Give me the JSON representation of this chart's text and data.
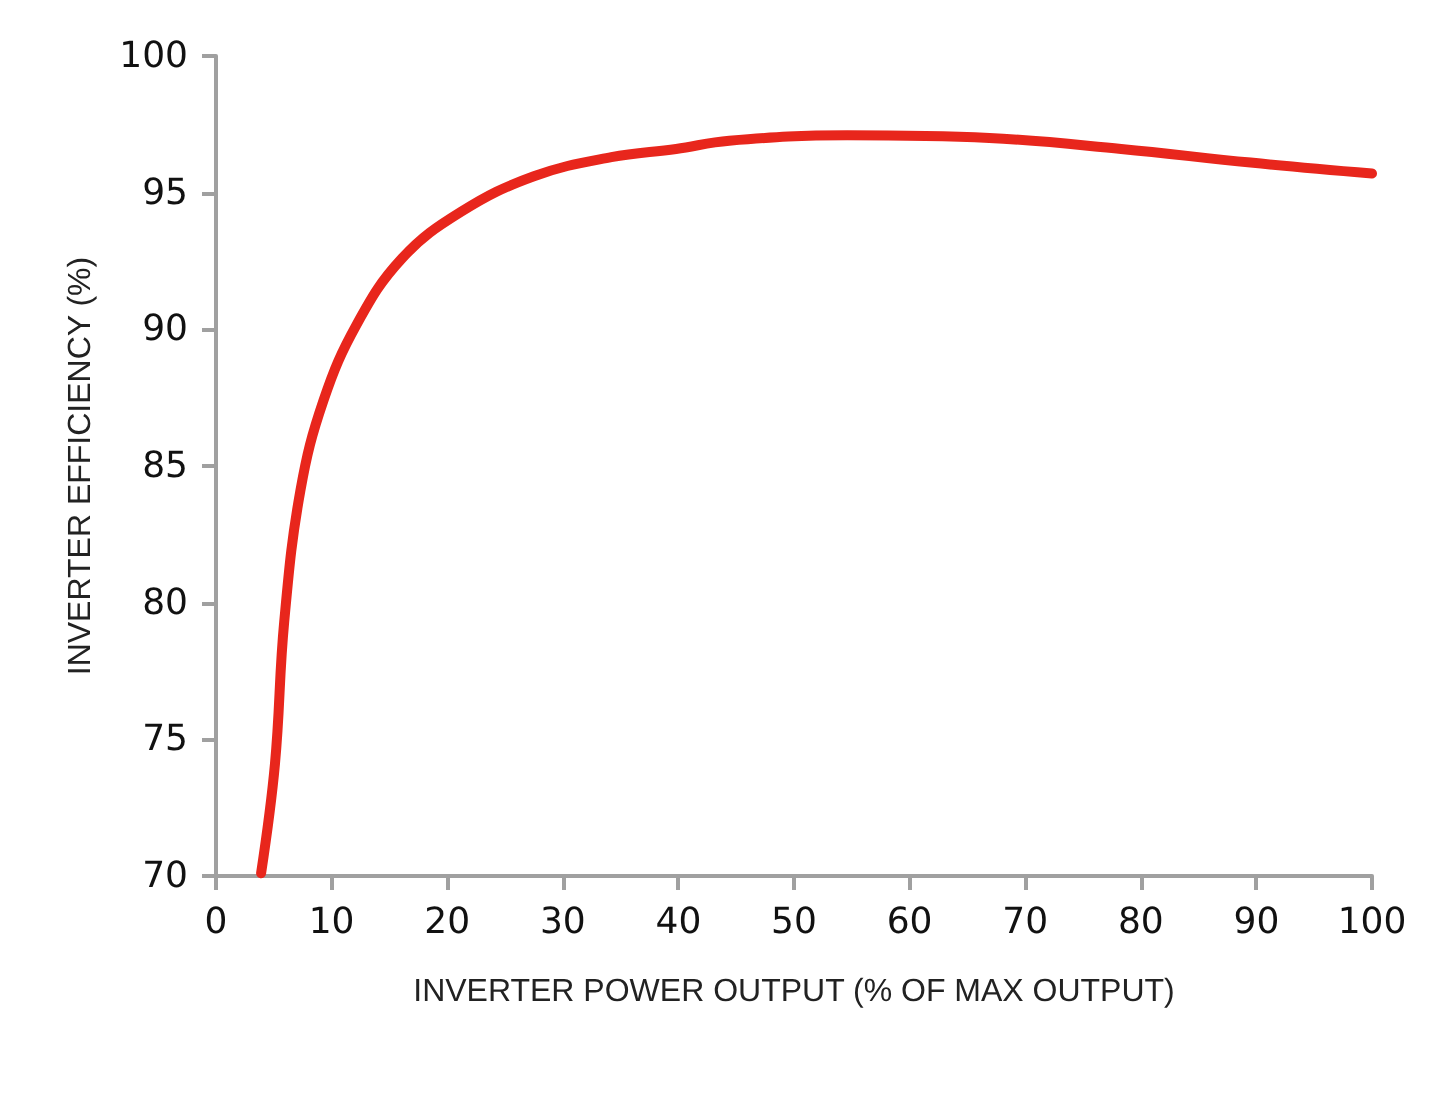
{
  "chart_data": {
    "type": "line",
    "xlabel": "INVERTER POWER OUTPUT (% OF MAX OUTPUT)",
    "ylabel": "INVERTER EFFICIENCY (%)",
    "series": [
      {
        "color": "#e8261c",
        "x": [
          3.9,
          5.1,
          5.9,
          7.3,
          9.3,
          12.2,
          16.1,
          21.2,
          27.5,
          34.2,
          39.8,
          44.4,
          54.6,
          66.9,
          78.3,
          89.5,
          100
        ],
        "values": [
          70.1,
          74.1,
          79.3,
          84.1,
          87.4,
          90.2,
          92.6,
          94.3,
          95.6,
          96.3,
          96.6,
          96.9,
          97.1,
          97.0,
          96.6,
          96.1,
          95.7
        ]
      }
    ],
    "xlim": [
      0,
      100
    ],
    "xticks": [
      0,
      10,
      20,
      30,
      40,
      50,
      60,
      70,
      80,
      90,
      100
    ],
    "ylim": [
      70,
      100
    ],
    "yticks": [
      70,
      75,
      80,
      85,
      90,
      95,
      100
    ],
    "grid": false,
    "marker": "none",
    "line_style": "solid"
  }
}
